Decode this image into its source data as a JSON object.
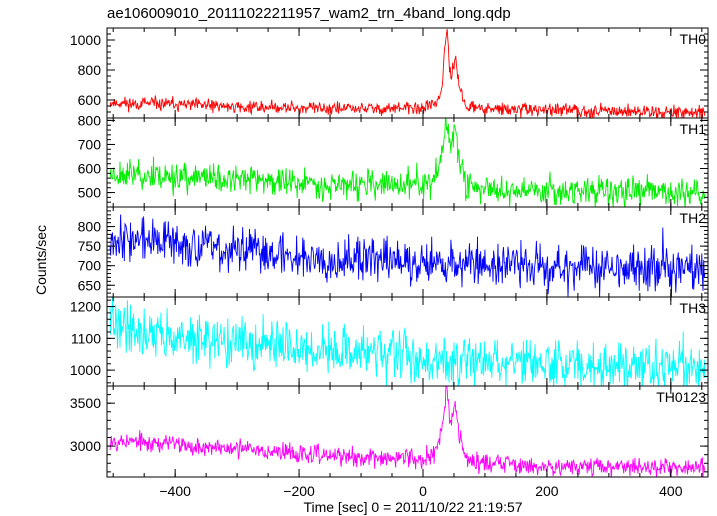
{
  "chart_data": {
    "type": "line",
    "title": "ae106009010_20111022211957_wam2_trn_4band_long.qdp",
    "xlabel": "Time [sec] 0 = 2011/10/22 21:19:57",
    "ylabel": "Counts/sec",
    "xlim": [
      -510,
      460
    ],
    "x_ticks": [
      -400,
      -200,
      0,
      200,
      400
    ],
    "panels": [
      {
        "name": "TH0",
        "color": "#ff0000",
        "ylim": [
          480,
          1080
        ],
        "y_ticks": [
          600,
          800,
          1000
        ],
        "keypoints": [
          [
            -500,
            580
          ],
          [
            -400,
            570
          ],
          [
            -300,
            555
          ],
          [
            -200,
            548
          ],
          [
            -100,
            542
          ],
          [
            0,
            545
          ],
          [
            20,
            580
          ],
          [
            30,
            660
          ],
          [
            38,
            1070
          ],
          [
            45,
            720
          ],
          [
            52,
            900
          ],
          [
            58,
            700
          ],
          [
            70,
            560
          ],
          [
            100,
            538
          ],
          [
            200,
            532
          ],
          [
            300,
            528
          ],
          [
            400,
            520
          ],
          [
            450,
            520
          ]
        ],
        "noise": 22,
        "seed": 11
      },
      {
        "name": "TH1",
        "color": "#00ee00",
        "ylim": [
          440,
          810
        ],
        "y_ticks": [
          500,
          600,
          700,
          800
        ],
        "keypoints": [
          [
            -500,
            580
          ],
          [
            -400,
            565
          ],
          [
            -300,
            555
          ],
          [
            -200,
            540
          ],
          [
            -100,
            530
          ],
          [
            0,
            532
          ],
          [
            20,
            560
          ],
          [
            30,
            640
          ],
          [
            38,
            805
          ],
          [
            45,
            680
          ],
          [
            52,
            780
          ],
          [
            58,
            650
          ],
          [
            70,
            530
          ],
          [
            100,
            515
          ],
          [
            200,
            510
          ],
          [
            300,
            505
          ],
          [
            400,
            500
          ],
          [
            450,
            505
          ]
        ],
        "noise": 30,
        "seed": 23
      },
      {
        "name": "TH2",
        "color": "#0000ff",
        "ylim": [
          620,
          850
        ],
        "y_ticks": [
          650,
          700,
          750,
          800
        ],
        "keypoints": [
          [
            -500,
            775
          ],
          [
            -400,
            755
          ],
          [
            -300,
            740
          ],
          [
            -200,
            725
          ],
          [
            -100,
            715
          ],
          [
            0,
            712
          ],
          [
            100,
            705
          ],
          [
            200,
            700
          ],
          [
            300,
            695
          ],
          [
            400,
            690
          ],
          [
            450,
            688
          ]
        ],
        "noise": 28,
        "seed": 37
      },
      {
        "name": "TH3",
        "color": "#00ffff",
        "ylim": [
          950,
          1230
        ],
        "y_ticks": [
          1000,
          1100,
          1200
        ],
        "keypoints": [
          [
            -500,
            1150
          ],
          [
            -450,
            1120
          ],
          [
            -400,
            1100
          ],
          [
            -300,
            1085
          ],
          [
            -200,
            1070
          ],
          [
            -100,
            1055
          ],
          [
            0,
            1035
          ],
          [
            100,
            1025
          ],
          [
            200,
            1020
          ],
          [
            300,
            1015
          ],
          [
            400,
            1010
          ],
          [
            450,
            1008
          ]
        ],
        "noise": 38,
        "seed": 41
      },
      {
        "name": "TH0123",
        "color": "#ff00ff",
        "ylim": [
          2640,
          3700
        ],
        "y_ticks": [
          3000,
          3500
        ],
        "keypoints": [
          [
            -500,
            3070
          ],
          [
            -400,
            3020
          ],
          [
            -300,
            2970
          ],
          [
            -200,
            2910
          ],
          [
            -100,
            2860
          ],
          [
            0,
            2860
          ],
          [
            20,
            2950
          ],
          [
            30,
            3150
          ],
          [
            38,
            3700
          ],
          [
            45,
            3250
          ],
          [
            52,
            3500
          ],
          [
            58,
            3150
          ],
          [
            70,
            2860
          ],
          [
            100,
            2800
          ],
          [
            200,
            2770
          ],
          [
            300,
            2760
          ],
          [
            400,
            2750
          ],
          [
            450,
            2755
          ]
        ],
        "noise": 55,
        "seed": 53
      }
    ]
  }
}
